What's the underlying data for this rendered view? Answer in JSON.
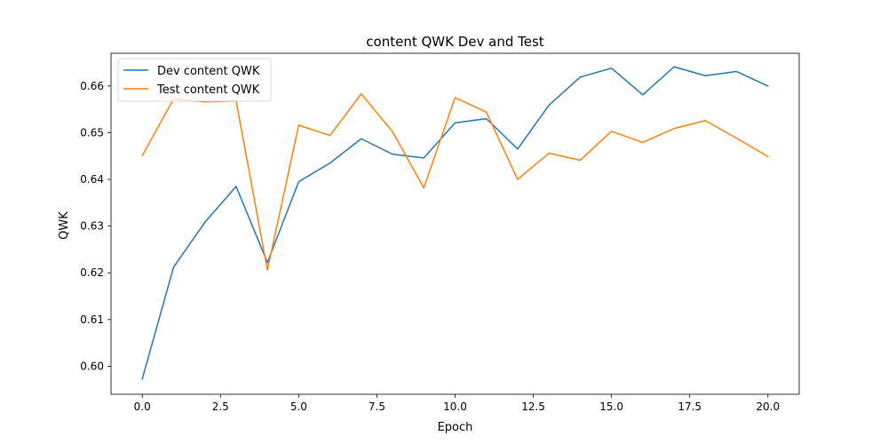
{
  "chart_data": {
    "type": "line",
    "title": "content QWK Dev and Test",
    "xlabel": "Epoch",
    "ylabel": "QWK",
    "xlim": [
      -1.0,
      21.0
    ],
    "ylim": [
      0.594,
      0.667
    ],
    "xticks": [
      0.0,
      2.5,
      5.0,
      7.5,
      10.0,
      12.5,
      15.0,
      17.5,
      20.0
    ],
    "xtick_labels": [
      "0.0",
      "2.5",
      "5.0",
      "7.5",
      "10.0",
      "12.5",
      "15.0",
      "17.5",
      "20.0"
    ],
    "yticks": [
      0.6,
      0.61,
      0.62,
      0.63,
      0.64,
      0.65,
      0.66
    ],
    "ytick_labels": [
      "0.60",
      "0.61",
      "0.62",
      "0.63",
      "0.64",
      "0.65",
      "0.66"
    ],
    "grid": false,
    "legend_position": "top-left",
    "x": [
      0,
      1,
      2,
      3,
      4,
      5,
      6,
      7,
      8,
      9,
      10,
      11,
      12,
      13,
      14,
      15,
      16,
      17,
      18,
      19,
      20
    ],
    "series": [
      {
        "name": "Dev content QWK",
        "color": "#1f77b4",
        "values": [
          0.5973,
          0.6212,
          0.6308,
          0.6385,
          0.6222,
          0.6395,
          0.6435,
          0.6487,
          0.6454,
          0.6446,
          0.6521,
          0.653,
          0.6465,
          0.6559,
          0.6619,
          0.6638,
          0.6581,
          0.6641,
          0.6622,
          0.6631,
          0.66
        ]
      },
      {
        "name": "Test content QWK",
        "color": "#ff7f0e",
        "values": [
          0.6451,
          0.6572,
          0.6566,
          0.6568,
          0.6206,
          0.6516,
          0.6494,
          0.6583,
          0.6502,
          0.6382,
          0.6575,
          0.6544,
          0.64,
          0.6456,
          0.6441,
          0.6503,
          0.6479,
          0.6509,
          0.6526,
          0.6488,
          0.6449
        ]
      }
    ]
  }
}
